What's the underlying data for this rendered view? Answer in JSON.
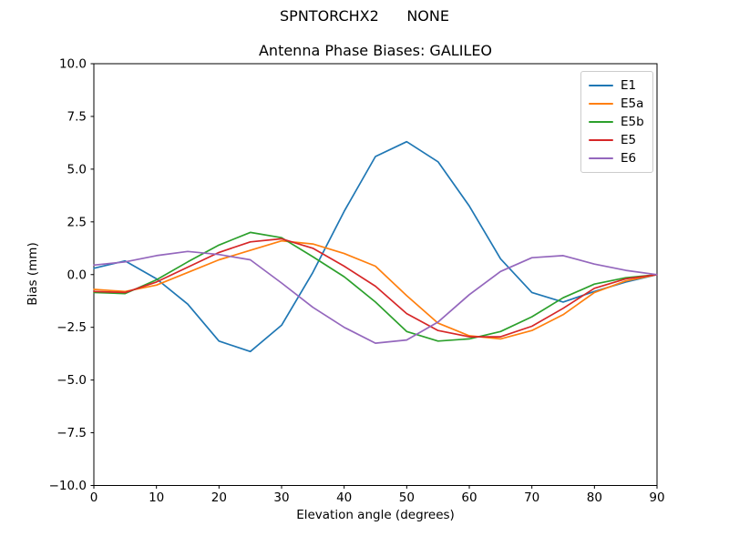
{
  "figure": {
    "suptitle": "SPNTORCHX2      NONE"
  },
  "chart_data": {
    "type": "line",
    "title": "Antenna Phase Biases: GALILEO",
    "xlabel": "Elevation angle (degrees)",
    "ylabel": "Bias (mm)",
    "xlim": [
      0,
      90
    ],
    "ylim": [
      -10,
      10
    ],
    "xticks": [
      0,
      10,
      20,
      30,
      40,
      50,
      60,
      70,
      80,
      90
    ],
    "yticks": [
      10.0,
      7.5,
      5.0,
      2.5,
      0.0,
      -2.5,
      -5.0,
      -7.5,
      -10.0
    ],
    "grid": false,
    "legend_position": "upper right",
    "x": [
      0,
      5,
      10,
      15,
      20,
      25,
      30,
      35,
      40,
      45,
      50,
      55,
      60,
      65,
      70,
      75,
      80,
      85,
      90
    ],
    "series": [
      {
        "name": "E1",
        "color": "#1f77b4",
        "values": [
          0.3,
          0.65,
          -0.2,
          -1.4,
          -3.15,
          -3.65,
          -2.4,
          0.1,
          3.0,
          5.6,
          6.3,
          5.35,
          3.25,
          0.75,
          -0.85,
          -1.3,
          -0.8,
          -0.35,
          0.0
        ]
      },
      {
        "name": "E5a",
        "color": "#ff7f0e",
        "values": [
          -0.7,
          -0.8,
          -0.5,
          0.1,
          0.7,
          1.15,
          1.6,
          1.45,
          1.0,
          0.4,
          -1.0,
          -2.3,
          -2.9,
          -3.05,
          -2.65,
          -1.9,
          -0.85,
          -0.3,
          0.0
        ]
      },
      {
        "name": "E5b",
        "color": "#2ca02c",
        "values": [
          -0.85,
          -0.9,
          -0.25,
          0.6,
          1.4,
          2.0,
          1.75,
          0.85,
          -0.1,
          -1.3,
          -2.7,
          -3.15,
          -3.05,
          -2.7,
          -2.0,
          -1.1,
          -0.45,
          -0.15,
          0.0
        ]
      },
      {
        "name": "E5",
        "color": "#d62728",
        "values": [
          -0.8,
          -0.85,
          -0.35,
          0.35,
          1.05,
          1.55,
          1.7,
          1.25,
          0.4,
          -0.55,
          -1.85,
          -2.65,
          -2.95,
          -2.95,
          -2.45,
          -1.6,
          -0.65,
          -0.2,
          0.0
        ]
      },
      {
        "name": "E6",
        "color": "#9467bd",
        "values": [
          0.45,
          0.6,
          0.9,
          1.1,
          0.95,
          0.7,
          -0.4,
          -1.55,
          -2.5,
          -3.25,
          -3.1,
          -2.25,
          -0.95,
          0.15,
          0.8,
          0.9,
          0.5,
          0.2,
          0.0
        ]
      }
    ]
  }
}
